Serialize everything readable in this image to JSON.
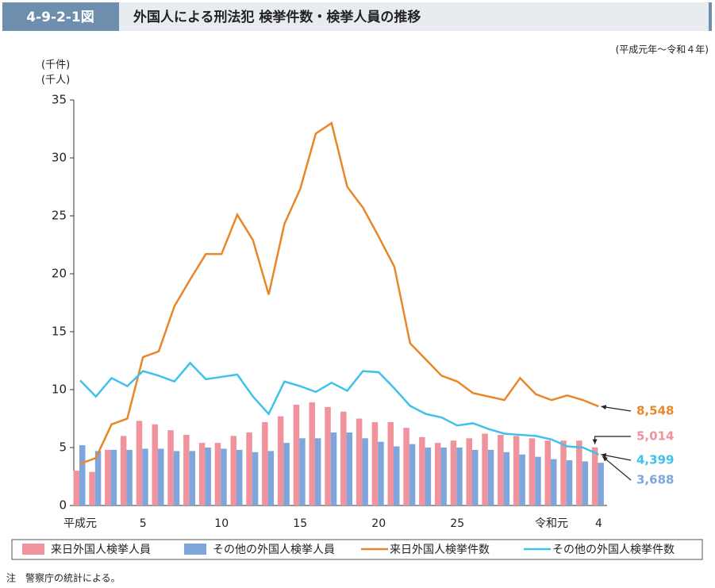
{
  "chart_data": {
    "type": "combo",
    "figure_label": "4-9-2-1図",
    "title": "外国人による刑法犯 検挙件数・検挙人員の推移",
    "subtitle": "(平成元年～令和４年)",
    "y_label": [
      "(千件)",
      "(千人)"
    ],
    "note": "注　警察庁の統計による。",
    "categories": [
      "平成元",
      null,
      null,
      null,
      "5",
      null,
      null,
      null,
      null,
      "10",
      null,
      null,
      null,
      null,
      "15",
      null,
      null,
      null,
      null,
      "20",
      null,
      null,
      null,
      null,
      "25",
      null,
      null,
      null,
      null,
      null,
      "令和元",
      null,
      null,
      "4"
    ],
    "ylim": [
      0,
      35
    ],
    "yticks": [
      0,
      5,
      10,
      15,
      20,
      25,
      30,
      35
    ],
    "series": [
      {
        "name": "来日外国人検挙人員",
        "kind": "bar",
        "color": "#f0939c",
        "values": [
          3.0,
          2.9,
          4.8,
          6.0,
          7.3,
          7.0,
          6.5,
          6.1,
          5.4,
          5.4,
          6.0,
          6.3,
          7.2,
          7.7,
          8.7,
          8.9,
          8.5,
          8.1,
          7.5,
          7.2,
          7.2,
          6.7,
          5.9,
          5.4,
          5.6,
          5.8,
          6.2,
          6.1,
          6.0,
          5.8,
          5.6,
          5.6,
          5.6,
          5.014
        ],
        "value_labels": [
          null,
          null,
          null,
          null,
          null,
          null,
          null,
          null,
          null,
          null,
          null,
          null,
          null,
          null,
          null,
          null,
          null,
          null,
          null,
          null,
          null,
          null,
          null,
          null,
          null,
          null,
          null,
          null,
          null,
          null,
          null,
          null,
          null,
          "5,014"
        ]
      },
      {
        "name": "その他の外国人検挙人員",
        "kind": "bar",
        "color": "#7fa6dc",
        "values": [
          5.2,
          4.7,
          4.8,
          4.8,
          4.9,
          4.9,
          4.7,
          4.7,
          5.0,
          4.9,
          4.8,
          4.6,
          4.7,
          5.4,
          5.8,
          5.8,
          6.3,
          6.3,
          5.8,
          5.5,
          5.1,
          5.3,
          5.0,
          5.0,
          5.0,
          4.8,
          4.8,
          4.6,
          4.4,
          4.2,
          4.0,
          3.9,
          3.8,
          3.688
        ],
        "value_labels": [
          null,
          null,
          null,
          null,
          null,
          null,
          null,
          null,
          null,
          null,
          null,
          null,
          null,
          null,
          null,
          null,
          null,
          null,
          null,
          null,
          null,
          null,
          null,
          null,
          null,
          null,
          null,
          null,
          null,
          null,
          null,
          null,
          null,
          "3,688"
        ]
      },
      {
        "name": "来日外国人検挙件数",
        "kind": "line",
        "color": "#e8872a",
        "values": [
          3.6,
          4.1,
          7.0,
          7.5,
          12.8,
          13.3,
          17.2,
          19.5,
          21.7,
          21.7,
          25.1,
          22.9,
          18.2,
          24.3,
          27.3,
          32.1,
          33.0,
          27.5,
          25.7,
          23.2,
          20.6,
          14.0,
          12.6,
          11.2,
          10.7,
          9.7,
          9.4,
          9.1,
          11.0,
          9.6,
          9.1,
          9.5,
          9.1,
          8.548
        ],
        "value_labels": [
          null,
          null,
          null,
          null,
          null,
          null,
          null,
          null,
          null,
          null,
          null,
          null,
          null,
          null,
          null,
          null,
          null,
          null,
          null,
          null,
          null,
          null,
          null,
          null,
          null,
          null,
          null,
          null,
          null,
          null,
          null,
          null,
          null,
          "8,548"
        ]
      },
      {
        "name": "その他の外国人検挙件数",
        "kind": "line",
        "color": "#3ec2ea",
        "values": [
          10.8,
          9.4,
          11.0,
          10.3,
          11.6,
          11.2,
          10.7,
          12.3,
          10.9,
          11.1,
          11.3,
          9.4,
          7.9,
          10.7,
          10.3,
          9.8,
          10.6,
          9.9,
          11.6,
          11.5,
          10.1,
          8.6,
          7.9,
          7.6,
          6.9,
          7.1,
          6.6,
          6.2,
          6.1,
          6.0,
          5.7,
          5.1,
          5.0,
          4.399
        ],
        "value_labels": [
          null,
          null,
          null,
          null,
          null,
          null,
          null,
          null,
          null,
          null,
          null,
          null,
          null,
          null,
          null,
          null,
          null,
          null,
          null,
          null,
          null,
          null,
          null,
          null,
          null,
          null,
          null,
          null,
          null,
          null,
          null,
          null,
          null,
          "4,399"
        ]
      }
    ]
  }
}
